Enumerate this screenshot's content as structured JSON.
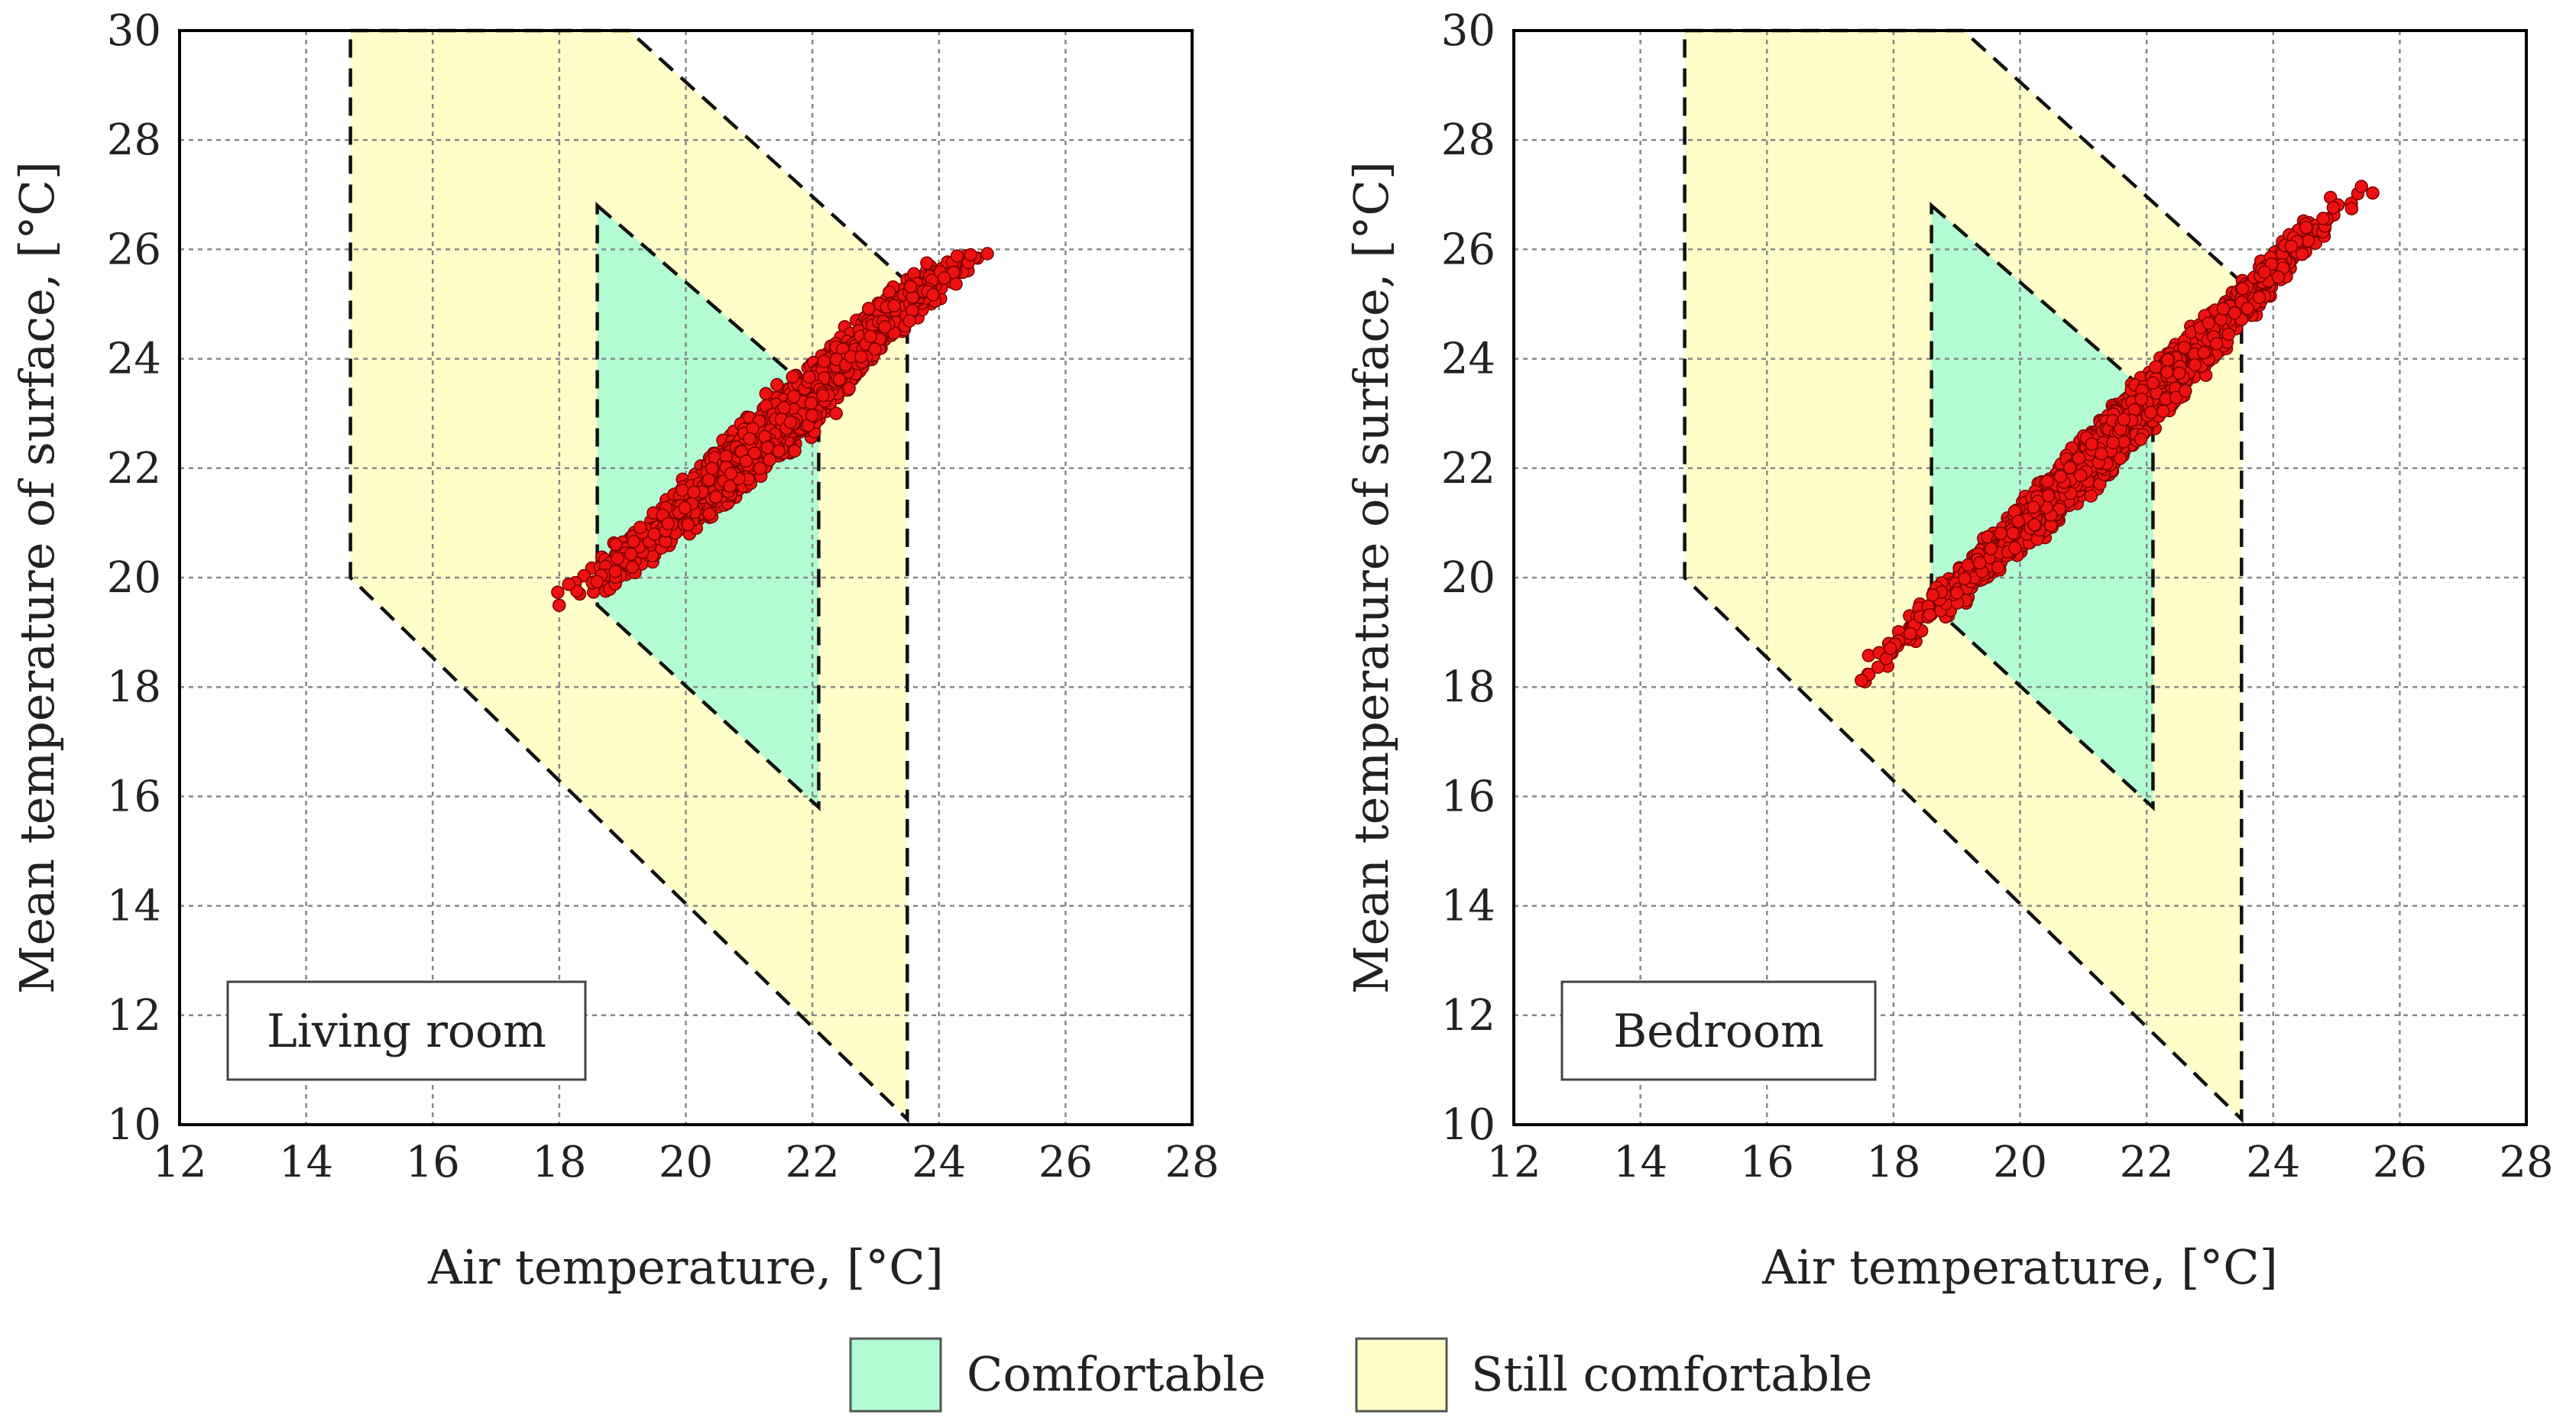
{
  "colors": {
    "comfortable": "#b3fbd3",
    "still_comfortable": "#fffdc8",
    "points_fill": "#ee1111",
    "points_edge": "#7a0000",
    "grid": "#888888",
    "axes": "#000000"
  },
  "legend": {
    "items": [
      {
        "label": "Comfortable",
        "color": "#b3fbd3"
      },
      {
        "label": "Still comfortable",
        "color": "#fffdc8"
      }
    ]
  },
  "chart_data": [
    {
      "type": "scatter",
      "panel_label": "Living room",
      "xlabel": "Air temperature, [°C]",
      "ylabel": "Mean temperature of surface, [°C]",
      "xlim": [
        12,
        28
      ],
      "ylim": [
        10,
        30
      ],
      "xticks": [
        "12",
        "14",
        "16",
        "18",
        "20",
        "22",
        "24",
        "26",
        "28"
      ],
      "yticks": [
        "10",
        "12",
        "14",
        "16",
        "18",
        "20",
        "22",
        "24",
        "26",
        "28",
        "30"
      ],
      "grid": true,
      "regions": {
        "still_comfortable": [
          [
            14.7,
            30
          ],
          [
            19.1,
            30
          ],
          [
            23.5,
            25.4
          ],
          [
            23.5,
            10.1
          ],
          [
            14.7,
            20.0
          ]
        ],
        "comfortable": [
          [
            18.6,
            26.8
          ],
          [
            22.1,
            23.3
          ],
          [
            22.1,
            15.8
          ],
          [
            18.6,
            19.5
          ]
        ]
      },
      "scatter": {
        "x_range": [
          17.8,
          25.2
        ],
        "y_at_x": [
          [
            17.8,
            19.5
          ],
          [
            19.0,
            20.3
          ],
          [
            20.0,
            21.3
          ],
          [
            21.0,
            22.3
          ],
          [
            22.0,
            23.3
          ],
          [
            23.0,
            24.5
          ],
          [
            24.0,
            25.5
          ],
          [
            25.0,
            26.2
          ]
        ],
        "spread_y": 0.6,
        "count": 2600,
        "seed": 11
      }
    },
    {
      "type": "scatter",
      "panel_label": "Bedroom",
      "xlabel": "Air temperature, [°C]",
      "ylabel": "Mean temperature of surface, [°C]",
      "xlim": [
        12,
        28
      ],
      "ylim": [
        10,
        30
      ],
      "xticks": [
        "12",
        "14",
        "16",
        "18",
        "20",
        "22",
        "24",
        "26",
        "28"
      ],
      "yticks": [
        "10",
        "12",
        "14",
        "16",
        "18",
        "20",
        "22",
        "24",
        "26",
        "28",
        "30"
      ],
      "grid": true,
      "regions": {
        "still_comfortable": [
          [
            14.7,
            30
          ],
          [
            19.1,
            30
          ],
          [
            23.5,
            25.4
          ],
          [
            23.5,
            10.1
          ],
          [
            14.7,
            20.0
          ]
        ],
        "comfortable": [
          [
            18.6,
            26.8
          ],
          [
            22.1,
            23.3
          ],
          [
            22.1,
            15.8
          ],
          [
            18.6,
            19.5
          ]
        ]
      },
      "scatter": {
        "x_range": [
          17.2,
          25.8
        ],
        "y_at_x": [
          [
            17.2,
            17.9
          ],
          [
            18.0,
            18.8
          ],
          [
            19.0,
            19.8
          ],
          [
            20.0,
            20.9
          ],
          [
            21.0,
            22.0
          ],
          [
            22.0,
            23.2
          ],
          [
            23.0,
            24.4
          ],
          [
            24.0,
            25.6
          ],
          [
            25.0,
            26.8
          ]
        ],
        "spread_y": 0.55,
        "count": 2600,
        "seed": 29
      }
    }
  ]
}
